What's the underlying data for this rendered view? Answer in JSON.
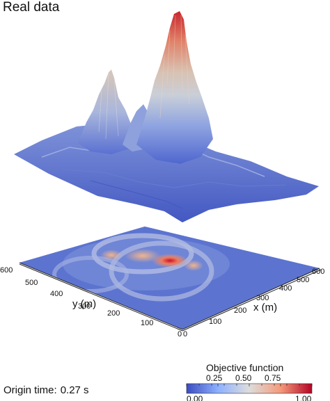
{
  "title": "Real data",
  "axes": {
    "y_label": "y (m)",
    "x_label": "x (m)",
    "y_ticks": [
      "600",
      "500",
      "400",
      "300",
      "200",
      "100",
      "0"
    ],
    "x_ticks": [
      "0",
      "100",
      "200",
      "300",
      "400",
      "500",
      "600"
    ]
  },
  "colorbar": {
    "title": "Objective function",
    "tick_labels": [
      "0.25",
      "0.50",
      "0.75"
    ],
    "min_label": "0.00",
    "max_label": "1.00",
    "colors": {
      "low": "#3b4cc0",
      "mid": "#dddddd",
      "high": "#b40426"
    }
  },
  "origin_time": {
    "label": "Origin time:",
    "value": "0.27 s"
  }
}
